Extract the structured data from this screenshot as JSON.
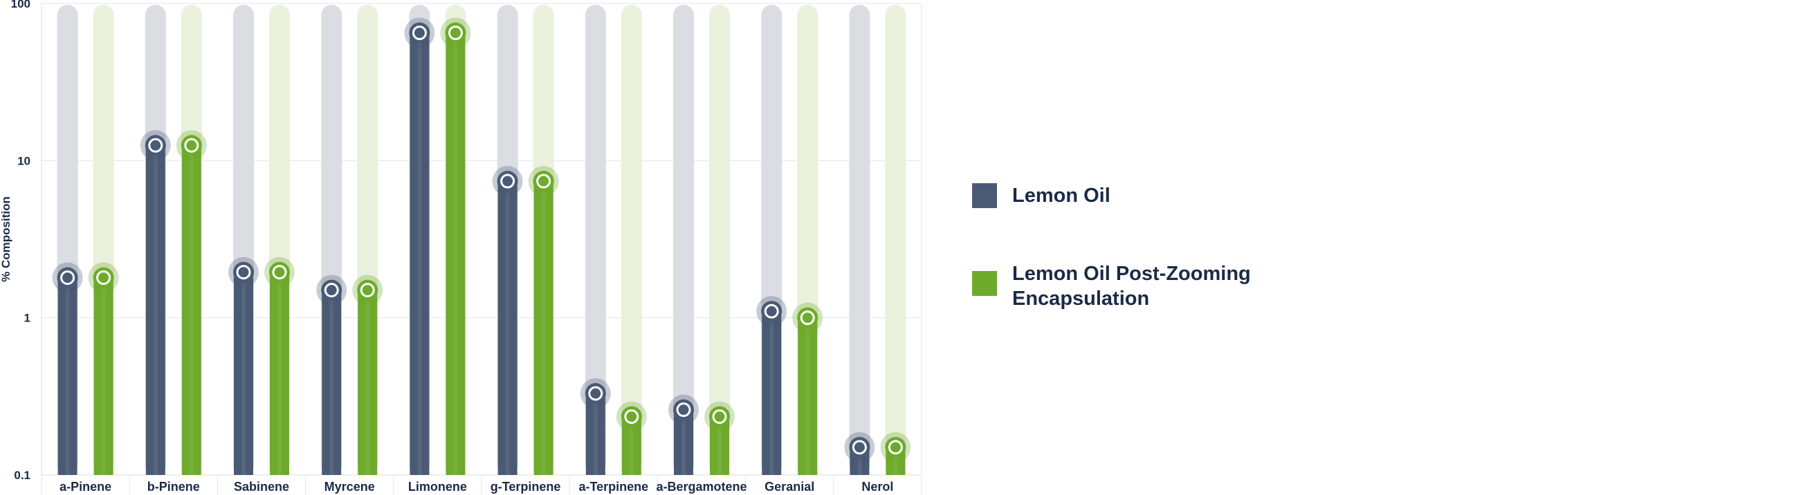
{
  "chart_data": {
    "type": "bar",
    "ylabel": "% Composition",
    "yscale": "log",
    "ylim": [
      0.1,
      100
    ],
    "yticks": [
      "0.1",
      "1",
      "10",
      "100"
    ],
    "categories": [
      "a-Pinene",
      "b-Pinene",
      "Sabinene",
      "Myrcene",
      "Limonene",
      "g-Terpinene",
      "a-Terpinene",
      "a-Bergamotene",
      "Geranial",
      "Nerol"
    ],
    "series": [
      {
        "name": "Lemon Oil",
        "color": "#4a5a75",
        "values": [
          1.8,
          12.5,
          1.95,
          1.5,
          65,
          7.4,
          0.33,
          0.26,
          1.1,
          0.15
        ]
      },
      {
        "name": "Lemon Oil Post-Zooming Encapsulation",
        "color": "#6eaa2c",
        "values": [
          1.8,
          12.5,
          1.95,
          1.5,
          65,
          7.4,
          0.235,
          0.235,
          1.0,
          0.15
        ]
      }
    ],
    "grid": true,
    "legend": "right"
  }
}
